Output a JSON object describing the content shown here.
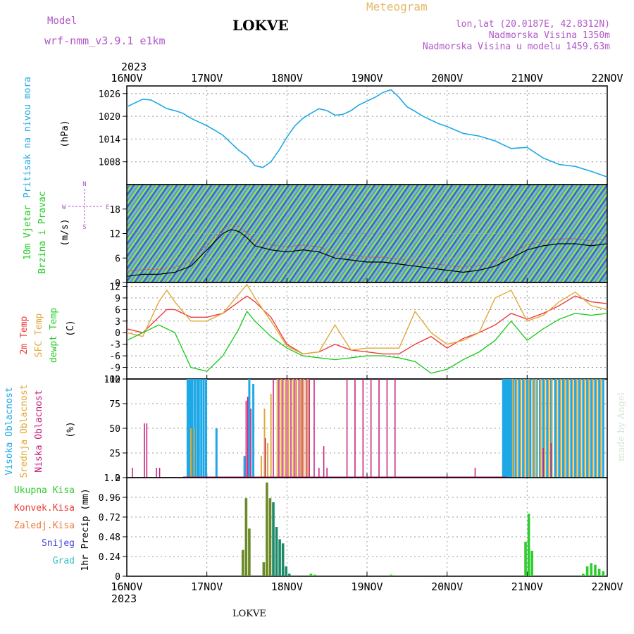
{
  "header": {
    "model_label": "Model",
    "model_value": "wrf-nmm_v3.9.1 e1km",
    "station_title": "LOKVE",
    "product": "Meteogram",
    "lonlat": "lon,lat (20.0187E, 42.8312N)",
    "elevation": "Nadmorska Visina 1350m",
    "model_elevation": "Nadmorska Visina u modelu 1459.63m",
    "year_top": "2023",
    "year_bottom": "2023",
    "footer_station": "LOKVE",
    "watermark": "made by Angel"
  },
  "colors": {
    "pressure": "#1ea8e6",
    "t2m": "#ee3b3b",
    "tsfc": "#e0a93a",
    "dewpt": "#22cc22",
    "high_cloud": "#1ea8e6",
    "mid_cloud": "#e0a93a",
    "low_cloud": "#c8187a",
    "total_precip": "#2ecc2e",
    "conv_precip": "#ee3b3b",
    "grid": "#999999"
  },
  "chart_data": [
    {
      "type": "line",
      "id": "pressure",
      "ylabel_main": "Pritisak na nivou mora",
      "ylabel_unit": "(hPa)",
      "x_ticks": [
        "16NOV",
        "17NOV",
        "18NOV",
        "19NOV",
        "20NOV",
        "21NOV",
        "22NOV"
      ],
      "xlim": [
        0,
        6
      ],
      "ylim": [
        1002,
        1028
      ],
      "yticks": [
        1008,
        1014,
        1020,
        1026
      ],
      "x": [
        0,
        0.1,
        0.2,
        0.3,
        0.4,
        0.5,
        0.6,
        0.7,
        0.8,
        0.9,
        1.0,
        1.1,
        1.2,
        1.3,
        1.4,
        1.5,
        1.6,
        1.7,
        1.8,
        1.9,
        2.0,
        2.1,
        2.2,
        2.3,
        2.4,
        2.5,
        2.6,
        2.7,
        2.8,
        2.9,
        3.0,
        3.1,
        3.2,
        3.3,
        3.4,
        3.5,
        3.6,
        3.7,
        3.8,
        3.9,
        4.0,
        4.2,
        4.4,
        4.6,
        4.8,
        5.0,
        5.2,
        5.4,
        5.6,
        5.8,
        6.0
      ],
      "y": [
        1022.5,
        1023.5,
        1024.5,
        1024.3,
        1023.2,
        1022,
        1021.5,
        1020.8,
        1019.5,
        1018.5,
        1017.5,
        1016.3,
        1015,
        1013,
        1011,
        1009.5,
        1007,
        1006.5,
        1008,
        1011,
        1014.5,
        1017.5,
        1019.5,
        1020.8,
        1022,
        1021.5,
        1020.3,
        1020.5,
        1021.5,
        1023,
        1024,
        1025,
        1026.3,
        1027,
        1025,
        1022.5,
        1021.3,
        1020,
        1019,
        1018,
        1017.3,
        1015.5,
        1014.8,
        1013.5,
        1011.5,
        1011.8,
        1009,
        1007.3,
        1006.8,
        1005.5,
        1004
      ]
    },
    {
      "type": "line",
      "id": "wind",
      "ylabel_main": "10m Vjetar",
      "ylabel_sub": "Brzina i Pravac",
      "ylabel_unit": "(m/s)",
      "compass_labels": [
        "N",
        "W",
        "E",
        "S"
      ],
      "xlim": [
        0,
        6
      ],
      "ylim": [
        0,
        24
      ],
      "yticks": [
        0,
        6,
        12,
        18
      ],
      "x": [
        0,
        0.2,
        0.4,
        0.6,
        0.8,
        1.0,
        1.1,
        1.2,
        1.3,
        1.4,
        1.5,
        1.6,
        1.8,
        2.0,
        2.2,
        2.4,
        2.6,
        2.8,
        3.0,
        3.2,
        3.4,
        3.6,
        3.8,
        4.0,
        4.2,
        4.4,
        4.6,
        4.8,
        5.0,
        5.2,
        5.4,
        5.6,
        5.8,
        6.0
      ],
      "y": [
        1.5,
        2,
        2,
        2.5,
        4,
        8,
        10,
        12,
        13,
        12.5,
        11,
        9,
        8,
        7.5,
        8,
        7.5,
        6,
        5.5,
        5,
        5,
        4.5,
        4,
        3.5,
        3,
        2.5,
        3,
        4,
        6,
        8,
        9,
        9.5,
        9.5,
        9,
        9.5
      ]
    },
    {
      "type": "line",
      "id": "temperature",
      "ylabel_main": "2m Temp",
      "ylabel_sub1": "SFC Temp",
      "ylabel_sub2": "dewpt Temp",
      "ylabel_unit": "(C)",
      "xlim": [
        0,
        6
      ],
      "ylim": [
        -12,
        13
      ],
      "yticks": [
        -12,
        -9,
        -6,
        -3,
        0,
        3,
        6,
        9,
        12
      ],
      "x": [
        0,
        0.2,
        0.4,
        0.5,
        0.6,
        0.8,
        1.0,
        1.2,
        1.4,
        1.5,
        1.6,
        1.8,
        2.0,
        2.2,
        2.4,
        2.6,
        2.8,
        3.0,
        3.2,
        3.4,
        3.6,
        3.8,
        4.0,
        4.2,
        4.4,
        4.6,
        4.8,
        5.0,
        5.2,
        5.4,
        5.6,
        5.8,
        6.0
      ],
      "series": [
        {
          "name": "2m Temp",
          "values": [
            1,
            0,
            4,
            6,
            6,
            4,
            4,
            5,
            8,
            9.5,
            8,
            4,
            -3,
            -5.5,
            -5,
            -3,
            -4.5,
            -5,
            -5.5,
            -5.5,
            -3,
            -1,
            -4,
            -1.5,
            0,
            2,
            5,
            3.5,
            5,
            7,
            9.5,
            8,
            7.5
          ]
        },
        {
          "name": "SFC Temp",
          "values": [
            0,
            -1,
            8,
            11,
            8,
            3,
            3,
            5,
            10,
            12.5,
            9,
            3,
            -3.5,
            -5.5,
            -5,
            2,
            -4.5,
            -4,
            -4,
            -4,
            5.5,
            0,
            -3,
            -2,
            0,
            9,
            11,
            3,
            4.5,
            8,
            10.5,
            7,
            6
          ]
        },
        {
          "name": "dewpt Temp",
          "values": [
            -2,
            0,
            2,
            1,
            0,
            -9,
            -10,
            -6,
            1,
            5.5,
            3,
            -1,
            -4,
            -6,
            -6.5,
            -7,
            -6.5,
            -6,
            -6,
            -6.5,
            -7.5,
            -10.5,
            -9.5,
            -7,
            -5,
            -2,
            3,
            -2,
            1,
            3.5,
            5,
            4.5,
            5
          ]
        }
      ]
    },
    {
      "type": "bar",
      "id": "cloud",
      "ylabel_main": "Visoka Oblacnost",
      "ylabel_sub1": "Srednja Oblacnost",
      "ylabel_sub2": "Niska Oblacnost",
      "ylabel_unit": "(%)",
      "xlim": [
        0,
        6
      ],
      "ylim": [
        0,
        100
      ],
      "yticks": [
        0,
        25,
        50,
        75,
        100
      ],
      "series": [
        {
          "name": "Visoka Oblacnost",
          "x": [
            0.76,
            0.78,
            0.8,
            0.82,
            0.85,
            0.88,
            0.9,
            0.93,
            0.96,
            0.99,
            1.12,
            1.47,
            1.53,
            1.58,
            4.7,
            4.72,
            4.74,
            4.76,
            4.78,
            4.8,
            4.83,
            4.86,
            4.9,
            4.95,
            5.0,
            5.04,
            5.08,
            5.12,
            5.16,
            5.2,
            5.25,
            5.3,
            5.35,
            5.4,
            5.45,
            5.5,
            5.55,
            5.6,
            5.65,
            5.7,
            5.75,
            5.8,
            5.85,
            5.9,
            5.95
          ],
          "values": [
            100,
            100,
            100,
            100,
            100,
            100,
            100,
            100,
            100,
            100,
            50,
            22,
            100,
            95,
            100,
            100,
            100,
            100,
            100,
            100,
            100,
            100,
            100,
            100,
            100,
            100,
            100,
            100,
            100,
            100,
            100,
            100,
            100,
            100,
            100,
            100,
            100,
            100,
            100,
            100,
            100,
            100,
            100,
            100,
            100
          ]
        },
        {
          "name": "Srednja Oblacnost",
          "x": [
            0.8,
            0.84,
            1.68,
            1.72,
            1.76,
            1.8,
            1.88,
            1.93,
            1.98,
            2.02,
            2.08,
            2.12,
            2.17,
            2.21,
            2.26,
            4.82,
            4.87,
            4.92,
            4.97,
            5.02,
            5.07,
            5.11,
            5.17,
            5.22,
            5.27,
            5.31,
            5.37,
            5.42,
            5.47,
            5.52,
            5.57,
            5.62,
            5.67,
            5.72,
            5.77,
            5.82,
            5.87,
            5.92
          ],
          "values": [
            50,
            50,
            22,
            70,
            35,
            85,
            100,
            100,
            100,
            100,
            100,
            100,
            100,
            100,
            100,
            100,
            100,
            100,
            100,
            100,
            100,
            100,
            100,
            100,
            100,
            100,
            100,
            100,
            100,
            100,
            100,
            100,
            100,
            100,
            100,
            100,
            100,
            100
          ]
        },
        {
          "name": "Niska Oblacnost",
          "x": [
            0.07,
            0.22,
            0.25,
            0.37,
            0.41,
            1.49,
            1.51,
            1.55,
            1.73,
            1.83,
            1.9,
            1.95,
            2.0,
            2.05,
            2.1,
            2.15,
            2.19,
            2.24,
            2.28,
            2.34,
            2.4,
            2.46,
            2.5,
            2.75,
            2.85,
            2.95,
            3.05,
            3.15,
            3.25,
            3.35,
            4.35,
            5.2,
            5.3
          ],
          "values": [
            10,
            55,
            55,
            10,
            10,
            78,
            82,
            70,
            40,
            100,
            100,
            100,
            100,
            100,
            100,
            100,
            100,
            100,
            100,
            100,
            10,
            32,
            10,
            100,
            100,
            100,
            100,
            100,
            100,
            100,
            10,
            30,
            35
          ]
        }
      ]
    },
    {
      "type": "bar",
      "id": "precip",
      "ylabel_main": "1hr Precip",
      "ylabel_unit": "(mm)",
      "legend": [
        "Ukupna Kisa",
        "Konvek.Kisa",
        "Zaledj.Kisa",
        "Snijeg",
        "Grad"
      ],
      "xlim": [
        0,
        6
      ],
      "ylim": [
        0,
        1.2
      ],
      "yticks": [
        0,
        0.24,
        0.48,
        0.72,
        0.96,
        1.2
      ],
      "x": [
        1.45,
        1.49,
        1.53,
        1.71,
        1.75,
        1.79,
        1.83,
        1.87,
        1.91,
        1.95,
        1.99,
        2.03,
        2.3,
        2.35,
        3.3,
        4.98,
        5.02,
        5.06,
        5.7,
        5.75,
        5.8,
        5.85,
        5.9,
        5.95
      ],
      "values": [
        0.32,
        0.95,
        0.58,
        0.17,
        1.14,
        0.95,
        0.9,
        0.6,
        0.45,
        0.4,
        0.12,
        0.03,
        0.03,
        0.02,
        0.02,
        0.42,
        0.76,
        0.31,
        0.03,
        0.12,
        0.16,
        0.14,
        0.09,
        0.06
      ],
      "conv_values": [
        0.3,
        0.9,
        0.55,
        0.15,
        1.05,
        0.9,
        0.85,
        0.55,
        0.4,
        0.35,
        0.1,
        0.02,
        0.02,
        0.01,
        0.01,
        0.0,
        0.0,
        0.0,
        0.0,
        0.0,
        0.0,
        0.0,
        0.0,
        0.0
      ]
    }
  ]
}
